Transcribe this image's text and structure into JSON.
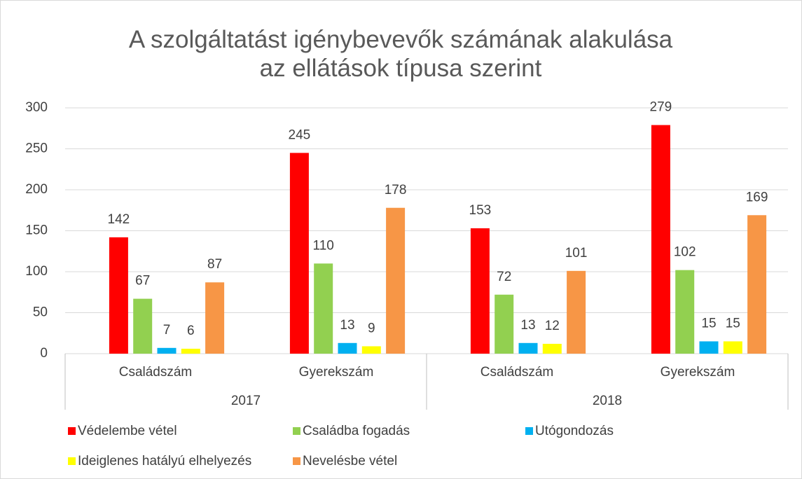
{
  "chart_data": {
    "type": "bar",
    "title": "A szolgáltatást igénybevevők számának alakulása az ellátások típusa szerint",
    "categories": [
      "Családszám",
      "Gyerekszám",
      "Családszám",
      "Gyerekszám"
    ],
    "groups": [
      "2017",
      "2018"
    ],
    "series": [
      {
        "name": "Védelembe vétel",
        "color": "#ff0000",
        "values": [
          142,
          245,
          153,
          279
        ]
      },
      {
        "name": "Családba fogadás",
        "color": "#92d050",
        "values": [
          67,
          110,
          72,
          102
        ]
      },
      {
        "name": "Utógondozás",
        "color": "#00b0f0",
        "values": [
          7,
          13,
          13,
          15
        ]
      },
      {
        "name": "Ideiglenes hatályú elhelyezés",
        "color": "#ffff00",
        "values": [
          6,
          9,
          12,
          15
        ]
      },
      {
        "name": "Nevelésbe vétel",
        "color": "#f79646",
        "values": [
          87,
          178,
          101,
          169
        ]
      }
    ],
    "ylim": [
      0,
      300
    ],
    "yticks": [
      0,
      50,
      100,
      150,
      200,
      250,
      300
    ],
    "grid": true,
    "legend": "bottom"
  }
}
